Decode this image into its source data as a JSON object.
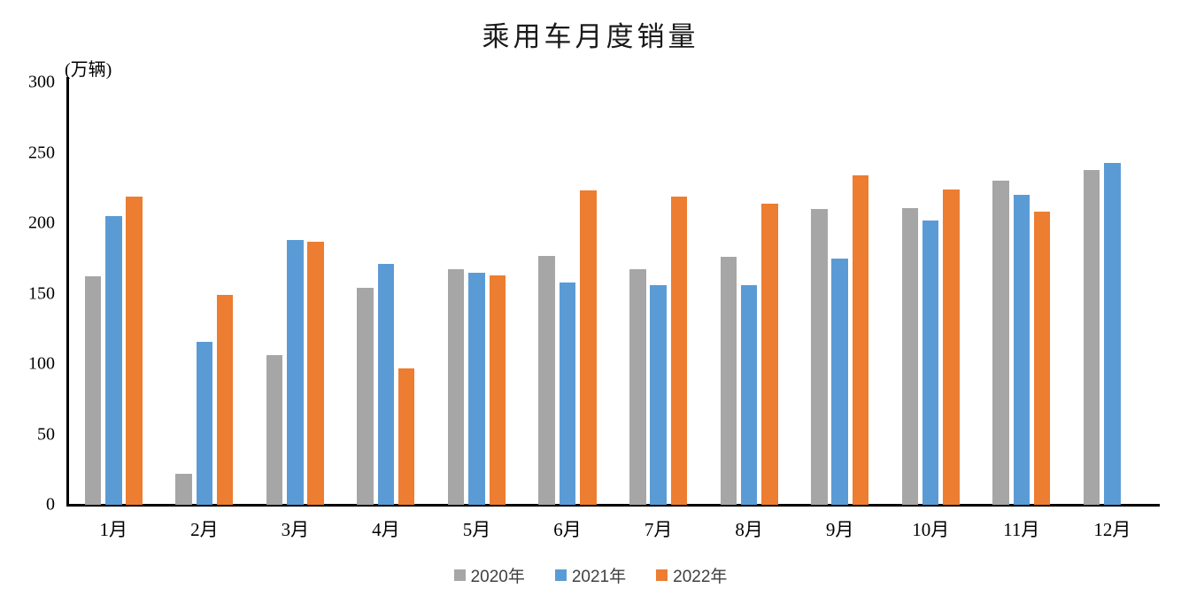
{
  "chart_data": {
    "type": "bar",
    "title": "乘用车月度销量",
    "ylabel": "(万辆)",
    "xlabel": "",
    "categories": [
      "1月",
      "2月",
      "3月",
      "4月",
      "5月",
      "6月",
      "7月",
      "8月",
      "9月",
      "10月",
      "11月",
      "12月"
    ],
    "series": [
      {
        "name": "2020年",
        "color": "#A6A6A6",
        "values": [
          162,
          22,
          106,
          154,
          167,
          177,
          167,
          176,
          210,
          211,
          230,
          238
        ]
      },
      {
        "name": "2021年",
        "color": "#5B9BD5",
        "values": [
          205,
          116,
          188,
          171,
          165,
          158,
          156,
          156,
          175,
          202,
          220,
          243
        ]
      },
      {
        "name": "2022年",
        "color": "#ED7D31",
        "values": [
          219,
          149,
          187,
          97,
          163,
          223,
          219,
          214,
          234,
          224,
          208,
          null
        ]
      }
    ],
    "ylim": [
      0,
      300
    ],
    "yticks": [
      0,
      50,
      100,
      150,
      200,
      250,
      300
    ],
    "grid": false,
    "legend_position": "bottom",
    "axis_color": "#000000"
  }
}
